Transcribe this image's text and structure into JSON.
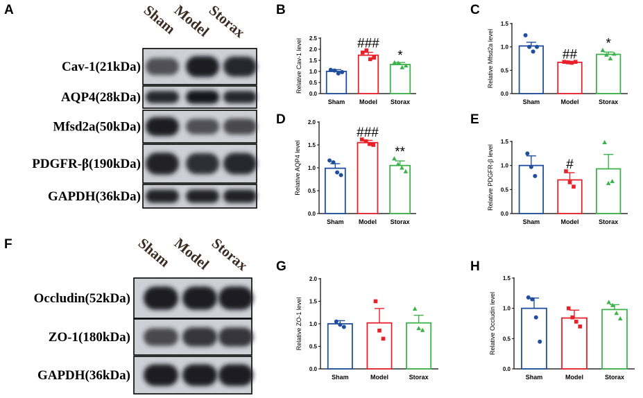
{
  "panels": {
    "A": {
      "letter": "A",
      "lanes": [
        "Sham",
        "Model",
        "Storax"
      ],
      "blots": [
        {
          "label": "Cav-1(21kDa)",
          "bands": [
            0.55,
            0.95,
            0.85
          ]
        },
        {
          "label": "AQP4(28kDa)",
          "bands": [
            0.85,
            1.0,
            0.85
          ]
        },
        {
          "label": "Mfsd2a(50kDa)",
          "bands": [
            0.95,
            0.55,
            0.6
          ]
        },
        {
          "label": "PDGFR-β(190kDa)",
          "bands": [
            0.9,
            0.8,
            0.85
          ]
        },
        {
          "label": "GAPDH(36kDa)",
          "bands": [
            0.9,
            0.9,
            0.9
          ]
        }
      ]
    },
    "F": {
      "letter": "F",
      "lanes": [
        "Sham",
        "Model",
        "Storax"
      ],
      "blots": [
        {
          "label": "Occludin(52kDa)",
          "bands": [
            0.95,
            0.95,
            0.95
          ]
        },
        {
          "label": "ZO-1(180kDa)",
          "bands": [
            0.6,
            0.75,
            0.75
          ]
        },
        {
          "label": "GAPDH(36kDa)",
          "bands": [
            0.95,
            0.95,
            0.95
          ]
        }
      ]
    }
  },
  "colors": {
    "sham": "#1f4e9e",
    "model": "#e8202a",
    "storax": "#3cb34a"
  },
  "chart_data": [
    {
      "id": "B",
      "letter": "B",
      "type": "bar",
      "categories": [
        "Sham",
        "Model",
        "Storax"
      ],
      "ylabel": "Relative Cav-1 level",
      "ylim": [
        0,
        2.5
      ],
      "yticks": [
        "0.0",
        "0.5",
        "1.0",
        "1.5",
        "2.0",
        "2.5"
      ],
      "values": [
        1.0,
        1.73,
        1.31
      ],
      "errors": [
        0.08,
        0.13,
        0.09
      ],
      "points": [
        [
          1.07,
          1.04,
          0.91,
          0.97
        ],
        [
          1.85,
          1.95,
          1.55,
          1.62
        ],
        [
          1.4,
          1.38,
          1.18,
          1.26
        ]
      ],
      "annotations": [
        "",
        "###",
        "*"
      ]
    },
    {
      "id": "C",
      "letter": "C",
      "type": "bar",
      "categories": [
        "Sham",
        "Model",
        "Storax"
      ],
      "ylabel": "Relative Mfsd2a level",
      "ylim": [
        0,
        1.5
      ],
      "yticks": [
        "0.0",
        "0.5",
        "1.0",
        "1.5"
      ],
      "values": [
        1.02,
        0.67,
        0.84
      ],
      "errors": [
        0.08,
        0.02,
        0.05
      ],
      "points": [
        [
          1.25,
          1.0,
          0.9,
          1.0
        ],
        [
          0.68,
          0.67,
          0.66,
          0.68
        ],
        [
          0.93,
          0.83,
          0.75,
          0.85
        ]
      ],
      "annotations": [
        "",
        "##",
        "*"
      ]
    },
    {
      "id": "D",
      "letter": "D",
      "type": "bar",
      "categories": [
        "Sham",
        "Model",
        "Storax"
      ],
      "ylabel": "Relative AQP4 level",
      "ylim": [
        0,
        2.0
      ],
      "yticks": [
        "0.0",
        "0.5",
        "1.0",
        "1.5",
        "2.0"
      ],
      "values": [
        0.99,
        1.55,
        1.05
      ],
      "errors": [
        0.1,
        0.05,
        0.1
      ],
      "points": [
        [
          1.16,
          1.12,
          0.9,
          0.84
        ],
        [
          1.62,
          1.58,
          1.52,
          1.5
        ],
        [
          1.2,
          1.08,
          1.0,
          0.92
        ]
      ],
      "annotations": [
        "",
        "###",
        "**"
      ]
    },
    {
      "id": "E",
      "letter": "E",
      "type": "bar",
      "categories": [
        "Sham",
        "Model",
        "Storax"
      ],
      "ylabel": "Relative PDGFR-β level",
      "ylim": [
        0,
        1.5
      ],
      "yticks": [
        "0.0",
        "0.5",
        "1.0",
        "1.5"
      ],
      "values": [
        1.0,
        0.7,
        0.93
      ],
      "errors": [
        0.2,
        0.15,
        0.3
      ],
      "points": [
        [
          1.25,
          0.97,
          0.78
        ],
        [
          0.88,
          0.65,
          0.56
        ],
        [
          1.48,
          0.63,
          0.67
        ]
      ],
      "annotations": [
        "",
        "#",
        ""
      ]
    },
    {
      "id": "G",
      "letter": "G",
      "type": "bar",
      "categories": [
        "Sham",
        "Model",
        "Storax"
      ],
      "ylabel": "Relative ZO-1 level",
      "ylim": [
        0,
        2.0
      ],
      "yticks": [
        "0.0",
        "0.5",
        "1.0",
        "1.5",
        "2.0"
      ],
      "values": [
        1.0,
        1.02,
        1.02
      ],
      "errors": [
        0.07,
        0.32,
        0.17
      ],
      "points": [
        [
          1.05,
          0.98,
          0.93
        ],
        [
          1.5,
          0.85,
          0.67
        ],
        [
          1.33,
          0.9,
          0.86
        ]
      ],
      "annotations": [
        "",
        "",
        ""
      ]
    },
    {
      "id": "H",
      "letter": "H",
      "type": "bar",
      "categories": [
        "Sham",
        "Model",
        "Storax"
      ],
      "ylabel": "Relative Occludin level",
      "ylim": [
        0,
        1.5
      ],
      "yticks": [
        "0.0",
        "0.5",
        "1.0",
        "1.5"
      ],
      "values": [
        1.0,
        0.84,
        0.98
      ],
      "errors": [
        0.17,
        0.13,
        0.08
      ],
      "points": [
        [
          1.18,
          1.15,
          0.85,
          0.45
        ],
        [
          1.0,
          0.85,
          0.78,
          0.7
        ],
        [
          1.1,
          1.05,
          0.92,
          0.83
        ]
      ],
      "annotations": [
        "",
        "",
        ""
      ]
    }
  ]
}
